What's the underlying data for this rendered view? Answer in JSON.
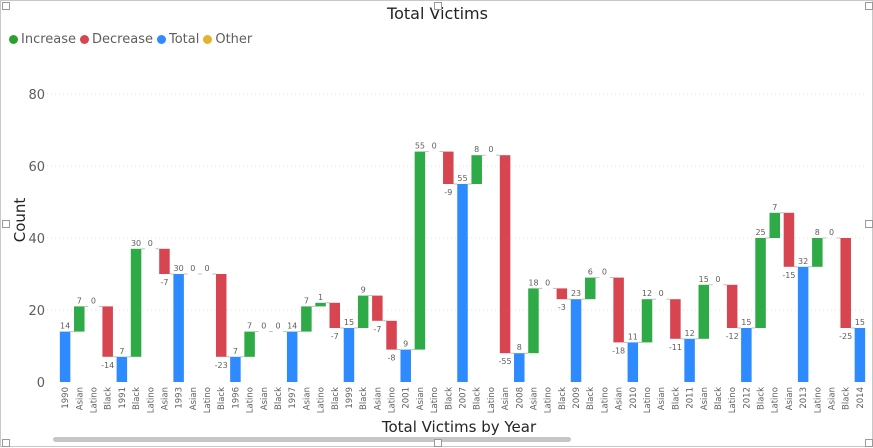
{
  "chart_data": {
    "type": "waterfall",
    "title": "Total Victims",
    "xlabel": "Total Victims by Year",
    "ylabel": "Count",
    "ylim": [
      0,
      80
    ],
    "yticks": [
      0,
      20,
      40,
      60,
      80
    ],
    "grid": true,
    "legend_position": "top-left",
    "legend": [
      {
        "name": "Increase",
        "color": "#2ca02c"
      },
      {
        "name": "Decrease",
        "color": "#d64550"
      },
      {
        "name": "Total",
        "color": "#2e8bff"
      },
      {
        "name": "Other",
        "color": "#e0b42c"
      }
    ],
    "colors": {
      "increase": "#2eaa47",
      "decrease": "#d64550",
      "total": "#2e8bff"
    },
    "bars": [
      {
        "label": "1990",
        "kind": "total",
        "value": 14,
        "data_label": "14"
      },
      {
        "label": "Asian",
        "kind": "increase",
        "value": 7,
        "data_label": "7"
      },
      {
        "label": "Latino",
        "kind": "increase",
        "value": 0,
        "data_label": "0"
      },
      {
        "label": "Black",
        "kind": "decrease",
        "value": -14,
        "data_label": "-14"
      },
      {
        "label": "1991",
        "kind": "total",
        "value": 7,
        "data_label": "7"
      },
      {
        "label": "Black",
        "kind": "increase",
        "value": 30,
        "data_label": "30"
      },
      {
        "label": "Latino",
        "kind": "increase",
        "value": 0,
        "data_label": "0"
      },
      {
        "label": "Asian",
        "kind": "decrease",
        "value": -7,
        "data_label": "-7"
      },
      {
        "label": "1993",
        "kind": "total",
        "value": 30,
        "data_label": "30"
      },
      {
        "label": "Asian",
        "kind": "increase",
        "value": 0,
        "data_label": "0"
      },
      {
        "label": "Latino",
        "kind": "increase",
        "value": 0,
        "data_label": "0"
      },
      {
        "label": "Black",
        "kind": "decrease",
        "value": -23,
        "data_label": "-23"
      },
      {
        "label": "1996",
        "kind": "total",
        "value": 7,
        "data_label": "7"
      },
      {
        "label": "Latino",
        "kind": "increase",
        "value": 7,
        "data_label": "7"
      },
      {
        "label": "Asian",
        "kind": "increase",
        "value": 0,
        "data_label": "0"
      },
      {
        "label": "Black",
        "kind": "increase",
        "value": 0,
        "data_label": "0"
      },
      {
        "label": "1997",
        "kind": "total",
        "value": 14,
        "data_label": "14"
      },
      {
        "label": "Asian",
        "kind": "increase",
        "value": 7,
        "data_label": "7"
      },
      {
        "label": "Latino",
        "kind": "increase",
        "value": 1,
        "data_label": "1"
      },
      {
        "label": "Black",
        "kind": "decrease",
        "value": -7,
        "data_label": "-7"
      },
      {
        "label": "1999",
        "kind": "total",
        "value": 15,
        "data_label": "15"
      },
      {
        "label": "Black",
        "kind": "increase",
        "value": 9,
        "data_label": "9"
      },
      {
        "label": "Asian",
        "kind": "decrease",
        "value": -7,
        "data_label": "-7"
      },
      {
        "label": "Latino",
        "kind": "decrease",
        "value": -8,
        "data_label": "-8"
      },
      {
        "label": "2001",
        "kind": "total",
        "value": 9,
        "data_label": "9"
      },
      {
        "label": "Asian",
        "kind": "increase",
        "value": 55,
        "data_label": "55"
      },
      {
        "label": "Latino",
        "kind": "increase",
        "value": 0,
        "data_label": "0"
      },
      {
        "label": "Black",
        "kind": "decrease",
        "value": -9,
        "data_label": "-9"
      },
      {
        "label": "2007",
        "kind": "total",
        "value": 55,
        "data_label": "55"
      },
      {
        "label": "Black",
        "kind": "increase",
        "value": 8,
        "data_label": "8"
      },
      {
        "label": "Latino",
        "kind": "increase",
        "value": 0,
        "data_label": "0"
      },
      {
        "label": "Asian",
        "kind": "decrease",
        "value": -55,
        "data_label": "-55"
      },
      {
        "label": "2008",
        "kind": "total",
        "value": 8,
        "data_label": "8"
      },
      {
        "label": "Asian",
        "kind": "increase",
        "value": 18,
        "data_label": "18"
      },
      {
        "label": "Latino",
        "kind": "increase",
        "value": 0,
        "data_label": "0"
      },
      {
        "label": "Black",
        "kind": "decrease",
        "value": -3,
        "data_label": "-3"
      },
      {
        "label": "2009",
        "kind": "total",
        "value": 23,
        "data_label": "23"
      },
      {
        "label": "Black",
        "kind": "increase",
        "value": 6,
        "data_label": "6"
      },
      {
        "label": "Latino",
        "kind": "increase",
        "value": 0,
        "data_label": "0"
      },
      {
        "label": "Asian",
        "kind": "decrease",
        "value": -18,
        "data_label": "-18"
      },
      {
        "label": "2010",
        "kind": "total",
        "value": 11,
        "data_label": "11"
      },
      {
        "label": "Latino",
        "kind": "increase",
        "value": 12,
        "data_label": "12"
      },
      {
        "label": "Asian",
        "kind": "increase",
        "value": 0,
        "data_label": "0"
      },
      {
        "label": "Black",
        "kind": "decrease",
        "value": -11,
        "data_label": "-11"
      },
      {
        "label": "2011",
        "kind": "total",
        "value": 12,
        "data_label": "12"
      },
      {
        "label": "Asian",
        "kind": "increase",
        "value": 15,
        "data_label": "15"
      },
      {
        "label": "Black",
        "kind": "increase",
        "value": 0,
        "data_label": "0"
      },
      {
        "label": "Latino",
        "kind": "decrease",
        "value": -12,
        "data_label": "-12"
      },
      {
        "label": "2012",
        "kind": "total",
        "value": 15,
        "data_label": "15"
      },
      {
        "label": "Black",
        "kind": "increase",
        "value": 25,
        "data_label": "25"
      },
      {
        "label": "Latino",
        "kind": "increase",
        "value": 7,
        "data_label": "7"
      },
      {
        "label": "Asian",
        "kind": "decrease",
        "value": -15,
        "data_label": "-15"
      },
      {
        "label": "2013",
        "kind": "total",
        "value": 32,
        "data_label": "32"
      },
      {
        "label": "Latino",
        "kind": "increase",
        "value": 8,
        "data_label": "8"
      },
      {
        "label": "Asian",
        "kind": "increase",
        "value": 0,
        "data_label": "0"
      },
      {
        "label": "Black",
        "kind": "decrease",
        "value": -25,
        "data_label": "-25"
      },
      {
        "label": "2014",
        "kind": "total",
        "value": 15,
        "data_label": "15"
      }
    ]
  }
}
